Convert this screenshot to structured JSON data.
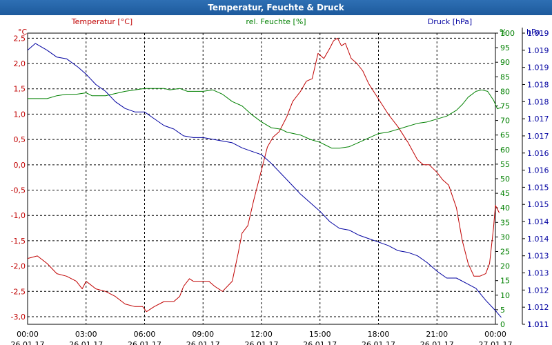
{
  "window": {
    "title": "Temperatur, Feuchte & Druck"
  },
  "colors": {
    "temperature": "#c00000",
    "humidity": "#008000",
    "pressure": "#0000a0",
    "grid": "#000000"
  },
  "chart_data": {
    "type": "line",
    "title": "Temperatur, Feuchte & Druck",
    "x_unit": "hours since 26.01.17 00:00",
    "xlim": [
      0,
      24
    ],
    "x_ticks": [
      {
        "time": "00:00",
        "date": "26.01.17"
      },
      {
        "time": "03:00",
        "date": "26.01.17"
      },
      {
        "time": "06:00",
        "date": "26.01.17"
      },
      {
        "time": "09:00",
        "date": "26.01.17"
      },
      {
        "time": "12:00",
        "date": "26.01.17"
      },
      {
        "time": "15:00",
        "date": "26.01.17"
      },
      {
        "time": "18:00",
        "date": "26.01.17"
      },
      {
        "time": "21:00",
        "date": "26.01.17"
      },
      {
        "time": "00:00",
        "date": "27.01.17"
      }
    ],
    "axes": {
      "left": {
        "unit": "°C",
        "ylim": [
          -3.15,
          2.6
        ],
        "ticks": [
          "2,5",
          "2,0",
          "1,5",
          "1,0",
          "0,5",
          "0,0",
          "-0,5",
          "-1,0",
          "-1,5",
          "-2,0",
          "-2,5",
          "-3,0"
        ],
        "tick_values": [
          2.5,
          2.0,
          1.5,
          1.0,
          0.5,
          0.0,
          -0.5,
          -1.0,
          -1.5,
          -2.0,
          -2.5,
          -3.0
        ]
      },
      "right1": {
        "unit": "%",
        "ylim": [
          0,
          100
        ],
        "ticks": [
          "100",
          "95",
          "90",
          "85",
          "80",
          "75",
          "70",
          "65",
          "60",
          "55",
          "50",
          "45",
          "40",
          "35",
          "30",
          "25",
          "20",
          "15",
          "10",
          "5",
          "0"
        ],
        "tick_values": [
          100,
          95,
          90,
          85,
          80,
          75,
          70,
          65,
          60,
          55,
          50,
          45,
          40,
          35,
          30,
          25,
          20,
          15,
          10,
          5,
          0
        ]
      },
      "right2": {
        "unit": "hPa",
        "ylim": [
          1011.0,
          1019.5
        ],
        "ticks": [
          "1.019",
          "1.019",
          "1.019",
          "1.018",
          "1.018",
          "1.017",
          "1.017",
          "1.016",
          "1.016",
          "1.015",
          "1.015",
          "1.014",
          "1.014",
          "1.013",
          "1.013",
          "1.012",
          "1.012",
          "1.011",
          "1.011"
        ],
        "tick_values": [
          1019.5,
          1019.0,
          1018.5,
          1018.0,
          1017.5,
          1017.0,
          1016.5,
          1016.0,
          1015.5,
          1015.0,
          1014.5,
          1014.0,
          1013.5,
          1013.0,
          1012.5,
          1012.0,
          1011.5,
          1011.0,
          1011.0
        ]
      }
    },
    "series": [
      {
        "name": "Temperatur [°C]",
        "axis": "left",
        "color": "#c00000",
        "points": [
          [
            0,
            -1.85
          ],
          [
            0.5,
            -1.8
          ],
          [
            1,
            -1.95
          ],
          [
            1.5,
            -2.15
          ],
          [
            2,
            -2.2
          ],
          [
            2.5,
            -2.3
          ],
          [
            2.8,
            -2.45
          ],
          [
            3,
            -2.3
          ],
          [
            3.5,
            -2.45
          ],
          [
            4,
            -2.5
          ],
          [
            4.5,
            -2.6
          ],
          [
            5,
            -2.75
          ],
          [
            5.5,
            -2.8
          ],
          [
            5.9,
            -2.8
          ],
          [
            6.1,
            -2.9
          ],
          [
            6.5,
            -2.8
          ],
          [
            7,
            -2.7
          ],
          [
            7.5,
            -2.7
          ],
          [
            7.8,
            -2.6
          ],
          [
            8,
            -2.4
          ],
          [
            8.3,
            -2.25
          ],
          [
            8.5,
            -2.3
          ],
          [
            9,
            -2.3
          ],
          [
            9.3,
            -2.3
          ],
          [
            9.6,
            -2.4
          ],
          [
            10,
            -2.5
          ],
          [
            10.5,
            -2.3
          ],
          [
            10.8,
            -1.75
          ],
          [
            11,
            -1.35
          ],
          [
            11.3,
            -1.2
          ],
          [
            11.6,
            -0.7
          ],
          [
            12,
            -0.1
          ],
          [
            12.3,
            0.35
          ],
          [
            12.6,
            0.55
          ],
          [
            12.9,
            0.65
          ],
          [
            13.1,
            0.8
          ],
          [
            13.3,
            0.95
          ],
          [
            13.6,
            1.25
          ],
          [
            14,
            1.45
          ],
          [
            14.3,
            1.65
          ],
          [
            14.6,
            1.7
          ],
          [
            14.9,
            2.2
          ],
          [
            15.2,
            2.1
          ],
          [
            15.5,
            2.3
          ],
          [
            15.7,
            2.45
          ],
          [
            15.9,
            2.5
          ],
          [
            16.1,
            2.35
          ],
          [
            16.3,
            2.4
          ],
          [
            16.6,
            2.1
          ],
          [
            16.9,
            2.0
          ],
          [
            17.2,
            1.85
          ],
          [
            17.5,
            1.6
          ],
          [
            18,
            1.3
          ],
          [
            18.5,
            1.0
          ],
          [
            19,
            0.75
          ],
          [
            19.5,
            0.45
          ],
          [
            20,
            0.1
          ],
          [
            20.3,
            0.0
          ],
          [
            20.6,
            0.0
          ],
          [
            21,
            -0.15
          ],
          [
            21.3,
            -0.3
          ],
          [
            21.6,
            -0.4
          ],
          [
            22,
            -0.85
          ],
          [
            22.3,
            -1.5
          ],
          [
            22.6,
            -1.95
          ],
          [
            22.9,
            -2.2
          ],
          [
            23.2,
            -2.2
          ],
          [
            23.5,
            -2.15
          ],
          [
            23.7,
            -1.95
          ],
          [
            23.9,
            -1.25
          ],
          [
            24,
            -0.8
          ],
          [
            24.2,
            -0.95
          ]
        ]
      },
      {
        "name": "rel. Feuchte [%]",
        "axis": "right1",
        "color": "#008000",
        "points": [
          [
            0,
            77.5
          ],
          [
            1,
            77.5
          ],
          [
            1.5,
            78.5
          ],
          [
            2,
            79
          ],
          [
            2.5,
            79
          ],
          [
            3,
            79.5
          ],
          [
            3.3,
            78.5
          ],
          [
            4,
            78.5
          ],
          [
            5,
            80
          ],
          [
            6,
            81
          ],
          [
            7,
            81
          ],
          [
            7.3,
            80.5
          ],
          [
            7.8,
            81
          ],
          [
            8.2,
            80
          ],
          [
            9,
            80
          ],
          [
            9.5,
            80.5
          ],
          [
            10,
            79
          ],
          [
            10.5,
            76.5
          ],
          [
            11,
            75
          ],
          [
            11.5,
            72
          ],
          [
            12,
            69.5
          ],
          [
            12.5,
            67.5
          ],
          [
            13,
            67
          ],
          [
            13.3,
            66
          ],
          [
            14,
            65
          ],
          [
            14.5,
            63.5
          ],
          [
            15,
            62.5
          ],
          [
            15.3,
            61.5
          ],
          [
            15.6,
            60.5
          ],
          [
            16,
            60.5
          ],
          [
            16.5,
            61
          ],
          [
            17,
            62.5
          ],
          [
            17.5,
            64
          ],
          [
            18,
            65.5
          ],
          [
            18.5,
            66
          ],
          [
            19,
            67
          ],
          [
            19.5,
            68
          ],
          [
            20,
            69
          ],
          [
            20.5,
            69.5
          ],
          [
            21,
            70.5
          ],
          [
            21.5,
            71.5
          ],
          [
            22,
            73.5
          ],
          [
            22.3,
            75.5
          ],
          [
            22.6,
            78
          ],
          [
            23,
            80
          ],
          [
            23.3,
            80.5
          ],
          [
            23.6,
            80
          ],
          [
            23.9,
            77
          ],
          [
            24.1,
            74
          ],
          [
            24.3,
            74.5
          ]
        ]
      },
      {
        "name": "Druck [hPa]",
        "axis": "right2",
        "color": "#0000a0",
        "points": [
          [
            0,
            1019.0
          ],
          [
            0.4,
            1019.2
          ],
          [
            1,
            1019.0
          ],
          [
            1.5,
            1018.8
          ],
          [
            2,
            1018.75
          ],
          [
            2.6,
            1018.5
          ],
          [
            3,
            1018.3
          ],
          [
            3.5,
            1018.0
          ],
          [
            4,
            1017.8
          ],
          [
            4.5,
            1017.5
          ],
          [
            5,
            1017.3
          ],
          [
            5.5,
            1017.2
          ],
          [
            6,
            1017.2
          ],
          [
            6.5,
            1017.0
          ],
          [
            7,
            1016.8
          ],
          [
            7.5,
            1016.7
          ],
          [
            8,
            1016.5
          ],
          [
            8.5,
            1016.45
          ],
          [
            9,
            1016.45
          ],
          [
            9.5,
            1016.4
          ],
          [
            10,
            1016.35
          ],
          [
            10.5,
            1016.3
          ],
          [
            11,
            1016.15
          ],
          [
            11.5,
            1016.05
          ],
          [
            12,
            1015.95
          ],
          [
            12.5,
            1015.7
          ],
          [
            13,
            1015.4
          ],
          [
            13.5,
            1015.1
          ],
          [
            14,
            1014.8
          ],
          [
            14.5,
            1014.55
          ],
          [
            15,
            1014.3
          ],
          [
            15.5,
            1014.0
          ],
          [
            16,
            1013.8
          ],
          [
            16.5,
            1013.75
          ],
          [
            17,
            1013.6
          ],
          [
            17.5,
            1013.5
          ],
          [
            18,
            1013.4
          ],
          [
            18.5,
            1013.3
          ],
          [
            19,
            1013.15
          ],
          [
            19.5,
            1013.1
          ],
          [
            20,
            1013.0
          ],
          [
            20.5,
            1012.8
          ],
          [
            21,
            1012.55
          ],
          [
            21.5,
            1012.35
          ],
          [
            22,
            1012.35
          ],
          [
            22.5,
            1012.2
          ],
          [
            23,
            1012.05
          ],
          [
            23.5,
            1011.7
          ],
          [
            24,
            1011.4
          ],
          [
            24.3,
            1011.2
          ]
        ]
      }
    ],
    "legend": [
      "Temperatur [°C]",
      "rel. Feuchte [%]",
      "Druck [hPa]"
    ]
  }
}
